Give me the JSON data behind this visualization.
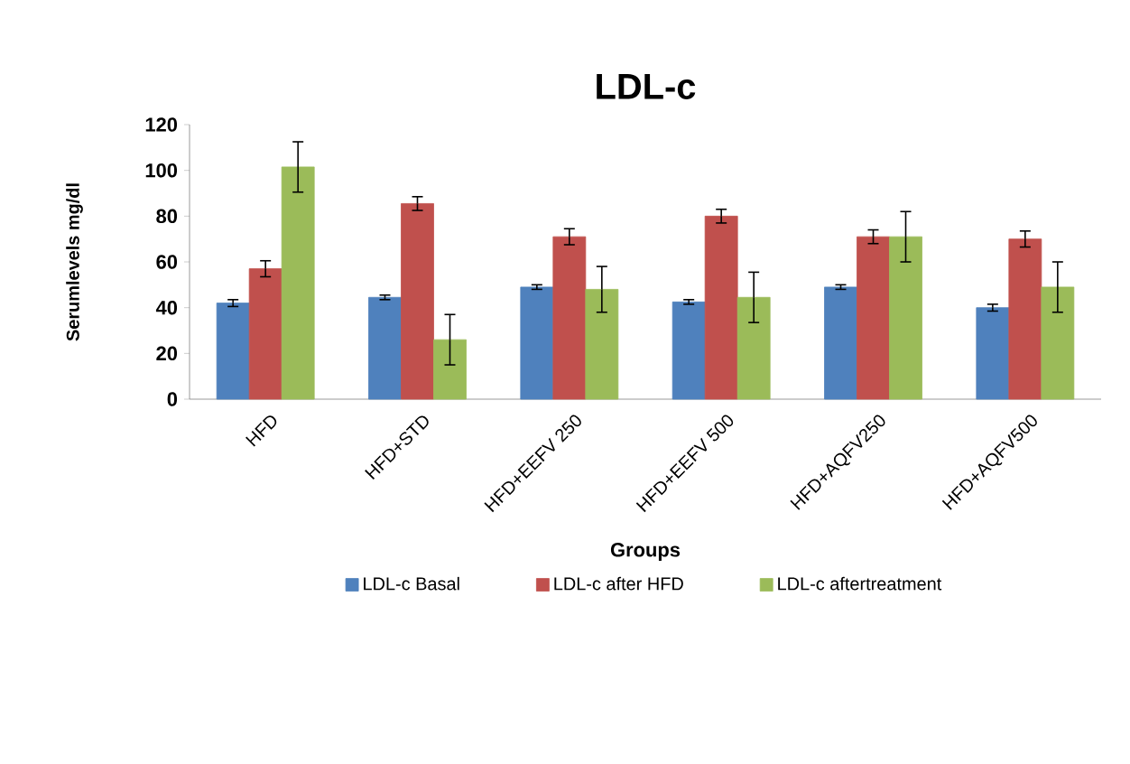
{
  "chart_data": {
    "type": "bar",
    "title": "LDL-c",
    "xlabel": "Groups",
    "ylabel": "Serumlevels mg/dl",
    "categories": [
      "HFD",
      "HFD+STD",
      "HFD+EEFV 250",
      "HFD+EEFV 500",
      "HFD+AQFV250",
      "HFD+AQFV500"
    ],
    "series": [
      {
        "name": "LDL-c Basal",
        "color": "#4f81bd",
        "values": [
          42,
          44.5,
          49,
          42.5,
          49,
          40
        ],
        "errors": [
          1.5,
          1,
          1,
          1,
          1,
          1.5
        ]
      },
      {
        "name": "LDL-c after HFD",
        "color": "#c0504d",
        "values": [
          57,
          85.5,
          71,
          80,
          71,
          70
        ],
        "errors": [
          3.5,
          3,
          3.5,
          3,
          3,
          3.5
        ]
      },
      {
        "name": "LDL-c aftertreatment",
        "color": "#9bbb59",
        "values": [
          101.5,
          26,
          48,
          44.5,
          71,
          49
        ],
        "errors": [
          11,
          11,
          10,
          11,
          11,
          11
        ]
      }
    ],
    "ylim": [
      0,
      120
    ],
    "yticks": [
      0,
      20,
      40,
      60,
      80,
      100,
      120
    ],
    "grid": false,
    "legend": "bottom"
  }
}
